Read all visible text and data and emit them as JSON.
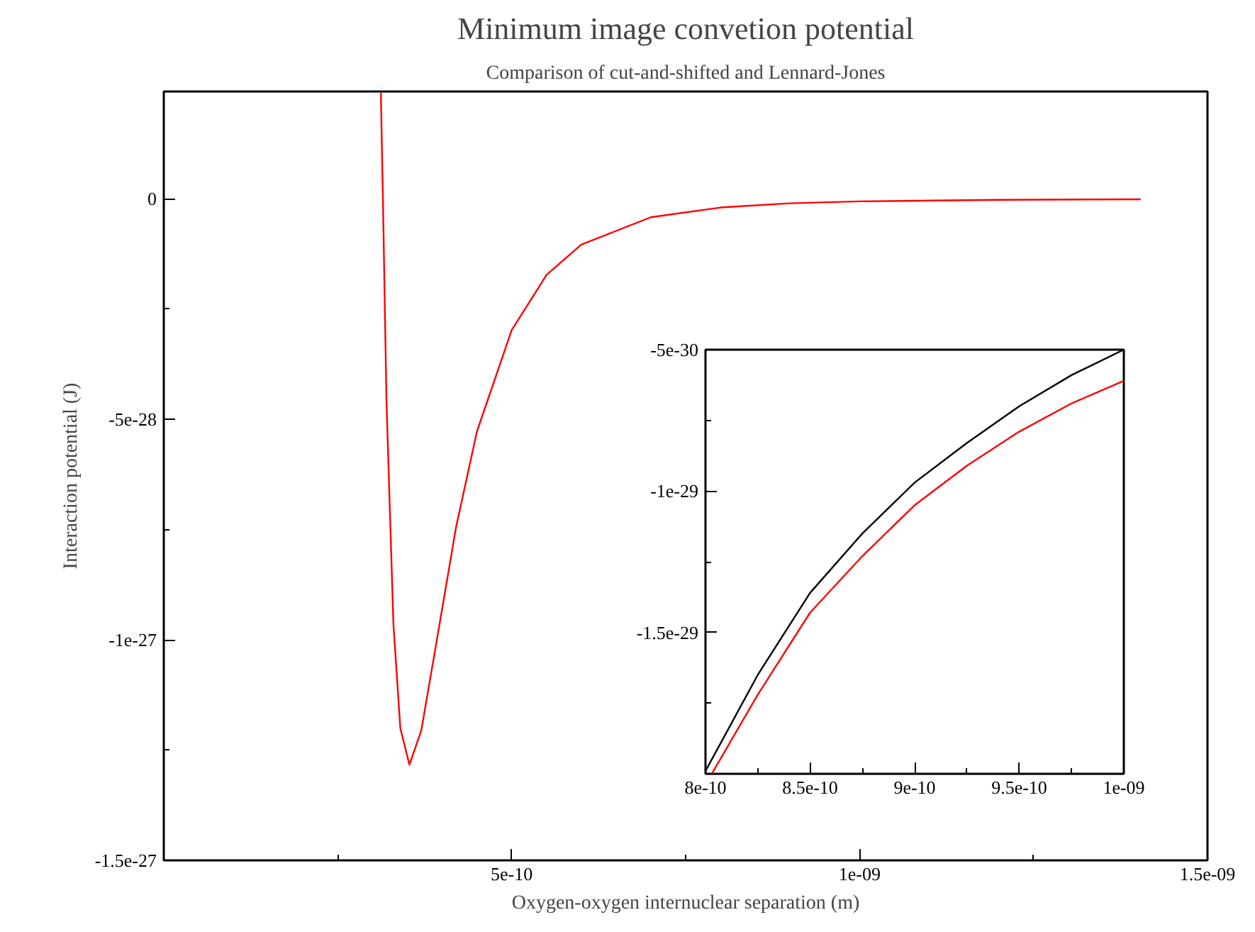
{
  "chart_data": [
    {
      "type": "line",
      "title": "Minimum image convetion potential",
      "subtitle": "Comparison of cut-and-shifted and Lennard-Jones",
      "xlabel": "Oxygen-oxygen internuclear separation (m)",
      "ylabel": "Interaction potential (J)",
      "xlim": [
        0,
        1.5e-09
      ],
      "ylim": [
        -1.5e-27,
        2.43e-28
      ],
      "xticks": [
        {
          "value": 0,
          "label": null
        },
        5e-10,
        {
          "value": 1e-09,
          "label": "1e-09"
        },
        {
          "value": 1.5e-09,
          "label": "1.5e-09"
        }
      ],
      "yticks": [
        -1.5e-27,
        -1e-27,
        -5e-28,
        0
      ],
      "grid": false,
      "series": [
        {
          "color": "#ff0000",
          "x": [
            3.12e-10,
            3.13e-10,
            3.15e-10,
            3.2e-10,
            3.3e-10,
            3.4e-10,
            3.53e-10,
            3.7e-10,
            3.9e-10,
            4.2e-10,
            4.5e-10,
            5e-10,
            5.5e-10,
            6e-10,
            7e-10,
            8e-10,
            9e-10,
            1e-09,
            1.2e-09,
            1.404e-09
          ],
          "values": [
            2.4e-28,
            1.53e-28,
            -4.9e-30,
            -4.57e-28,
            -9.64e-28,
            -1.201e-27,
            -1.283e-27,
            -1.206e-27,
            -1.023e-27,
            -7.45e-28,
            -5.28e-28,
            -2.98e-28,
            -1.73e-28,
            -1.04e-28,
            -4.2e-29,
            -2e-29,
            -1.05e-29,
            -6.1e-30,
            -2.6e-30,
            -1.4e-30
          ]
        }
      ]
    },
    {
      "type": "line",
      "xlim": [
        8e-10,
        1e-09
      ],
      "ylim": [
        -2e-29,
        -5e-30
      ],
      "xticks": [
        8e-10,
        8.5e-10,
        9e-10,
        9.5e-10,
        {
          "value": 1e-09,
          "label": "1e-09"
        }
      ],
      "yticks": [
        {
          "value": -2e-29,
          "label": null
        },
        -1.5e-29,
        -1e-29,
        -5e-30
      ],
      "grid": false,
      "series": [
        {
          "color": "#000000",
          "x": [
            8e-10,
            8.25e-10,
            8.5e-10,
            8.75e-10,
            9e-10,
            9.25e-10,
            9.5e-10,
            9.75e-10,
            1e-09
          ],
          "values": [
            -1.99e-29,
            -1.65e-29,
            -1.36e-29,
            -1.15e-29,
            -9.7e-30,
            -8.3e-30,
            -7e-30,
            -5.9e-30,
            -5e-30
          ]
        },
        {
          "color": "#ff0000",
          "x": [
            8.03e-10,
            8.25e-10,
            8.5e-10,
            8.75e-10,
            9e-10,
            9.25e-10,
            9.5e-10,
            9.75e-10,
            1e-09
          ],
          "values": [
            -2e-29,
            -1.72e-29,
            -1.43e-29,
            -1.23e-29,
            -1.05e-29,
            -9.1e-30,
            -7.9e-30,
            -6.9e-30,
            -6.1e-30
          ]
        }
      ]
    }
  ]
}
